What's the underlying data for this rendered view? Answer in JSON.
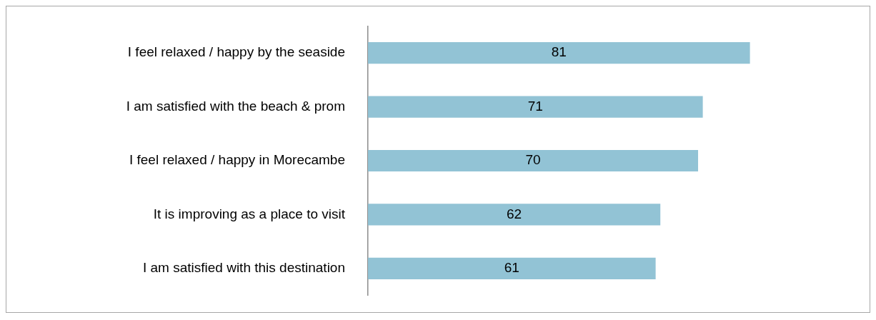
{
  "chart_data": {
    "type": "bar",
    "orientation": "horizontal",
    "categories": [
      "I feel relaxed / happy by the seaside",
      "I am satisfied with the beach & prom",
      "I feel relaxed / happy in Morecambe",
      "It is improving as a place to visit",
      "I am satisfied with this destination"
    ],
    "values": [
      81,
      71,
      70,
      62,
      61
    ],
    "color": "#92c3d5",
    "data_labels": true,
    "tick_labels": "y"
  }
}
